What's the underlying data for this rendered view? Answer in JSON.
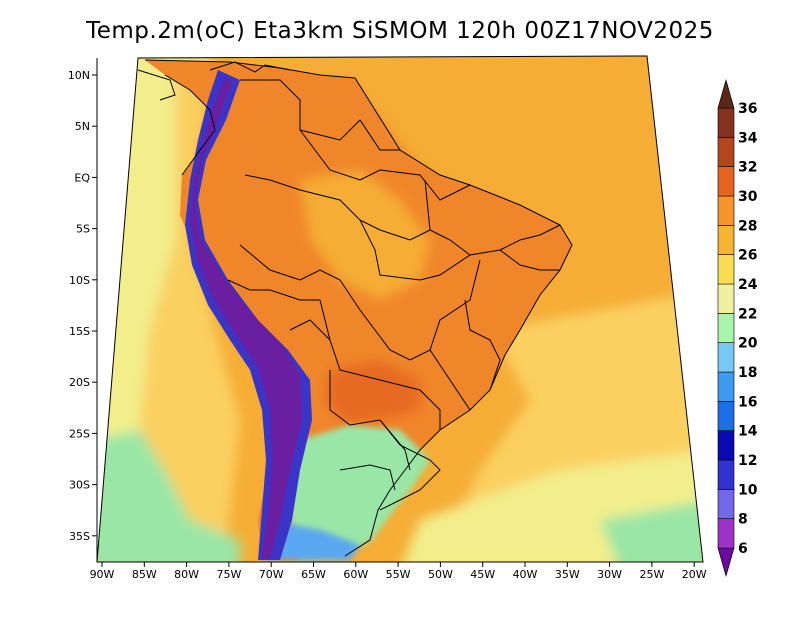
{
  "title": "Temp.2m(oC) Eta3km SiSMOM 120h 00Z17NOV2025",
  "lat_labels": [
    "10N",
    "5N",
    "EQ",
    "5S",
    "10S",
    "15S",
    "20S",
    "25S",
    "30S",
    "35S"
  ],
  "lon_labels": [
    "90W",
    "85W",
    "80W",
    "75W",
    "70W",
    "65W",
    "60W",
    "55W",
    "50W",
    "45W",
    "40W",
    "35W",
    "30W",
    "25W",
    "20W"
  ],
  "colorbar": {
    "labels": [
      "6",
      "8",
      "10",
      "12",
      "14",
      "16",
      "18",
      "20",
      "22",
      "24",
      "26",
      "28",
      "30",
      "32",
      "34",
      "36"
    ],
    "colors": [
      "#6a0a9e",
      "#9d32c8",
      "#7369e8",
      "#3232d2",
      "#0a0ab4",
      "#1e6ee6",
      "#3c9bf0",
      "#78c8f5",
      "#aaf5aa",
      "#f0f0a0",
      "#fadc50",
      "#f5b432",
      "#f5962d",
      "#e6641e",
      "#b4461e",
      "#82321e",
      "#5a2814"
    ]
  },
  "palette": {
    "ocean_warm": "#f5ad36",
    "ocean_mid": "#fad060",
    "ocean_cool": "#f2ee8c",
    "ocean_cold": "#9ae6a6",
    "land_hot": "#f0862a",
    "land_very_hot": "#e66a20",
    "andes": "#6a1fa0",
    "andes_cold": "#3a34c8",
    "south_cool": "#5aa8f0",
    "border": "#000000"
  }
}
